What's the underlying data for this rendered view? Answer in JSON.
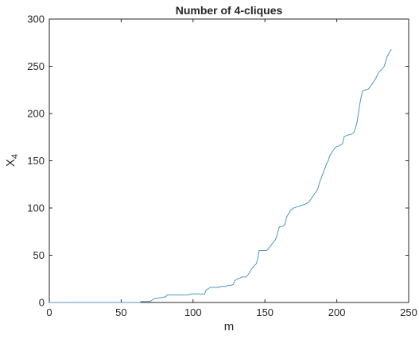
{
  "chart_data": {
    "type": "line",
    "title": "Number of 4-cliques",
    "xlabel": "m",
    "ylabel_main": "X",
    "ylabel_sub": "4",
    "xlim": [
      0,
      250
    ],
    "ylim": [
      0,
      300
    ],
    "xticks": [
      0,
      50,
      100,
      150,
      200,
      250
    ],
    "yticks": [
      0,
      50,
      100,
      150,
      200,
      250,
      300
    ],
    "grid": false,
    "line_color": "#4e97c2",
    "series": [
      {
        "x": [
          0,
          63,
          64,
          70,
          71,
          73,
          77,
          81,
          82,
          97,
          98,
          103,
          108,
          109,
          112,
          118,
          119,
          123,
          124,
          126,
          128,
          129,
          131,
          133,
          134,
          137,
          138,
          139,
          141,
          142,
          144,
          145,
          146,
          151,
          152,
          154,
          156,
          157,
          158,
          160,
          161,
          163,
          164,
          165,
          168,
          169,
          170,
          172,
          174,
          178,
          179,
          181,
          184,
          186,
          187,
          188,
          190,
          191,
          192,
          193,
          194,
          195,
          197,
          199,
          200,
          202,
          204,
          205,
          207,
          210,
          211,
          212,
          213,
          214,
          215,
          216,
          217,
          218,
          220,
          222,
          223,
          224,
          225,
          227,
          228,
          229,
          230,
          231,
          232,
          233,
          234,
          235,
          236,
          237,
          238
        ],
        "values": [
          0,
          0,
          1,
          1,
          2,
          4,
          5,
          6,
          8,
          8,
          9,
          9,
          9,
          13,
          16,
          16,
          17,
          17,
          18,
          18,
          19,
          23,
          25,
          26,
          27,
          27,
          29,
          31,
          36,
          38,
          41,
          46,
          55,
          55,
          56,
          60,
          64,
          66,
          69,
          80,
          80,
          81,
          83,
          90,
          98,
          99,
          100,
          101,
          102,
          104,
          105,
          107,
          114,
          118,
          121,
          127,
          135,
          139,
          143,
          147,
          150,
          155,
          160,
          164,
          165,
          166,
          168,
          175,
          177,
          178,
          179,
          180,
          185,
          190,
          200,
          210,
          218,
          224,
          225,
          226,
          228,
          230,
          232,
          237,
          240,
          243,
          245,
          246,
          248,
          250,
          255,
          260,
          263,
          266,
          268
        ]
      }
    ]
  }
}
